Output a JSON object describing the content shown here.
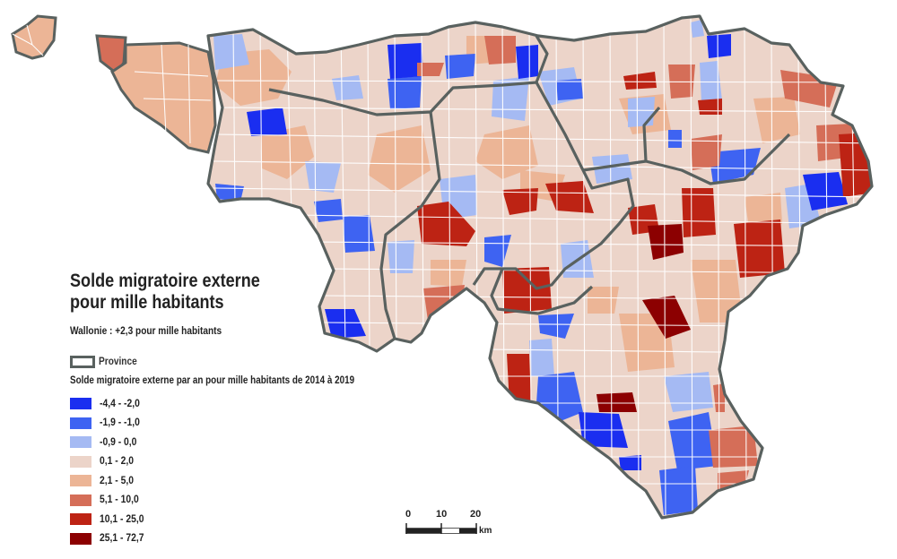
{
  "title_line1": "Solde migratoire externe",
  "title_line2": "pour mille habitants",
  "wallonie_note": "Wallonie : +2,3 pour mille habitants",
  "province_legend_label": "Province",
  "legend_title": "Solde migratoire externe par an pour mille habitants de 2014 à 2019",
  "legend": [
    {
      "label": "-4,4 - -2,0",
      "color": "#1a2ef0"
    },
    {
      "label": "-1,9 - -1,0",
      "color": "#3e63f2"
    },
    {
      "label": "-0,9 - 0,0",
      "color": "#a5baf3"
    },
    {
      "label": "0,1 - 2,0",
      "color": "#ecd4c9"
    },
    {
      "label": "2,1 - 5,0",
      "color": "#ecb596"
    },
    {
      "label": "5,1 - 10,0",
      "color": "#d56e58"
    },
    {
      "label": "10,1 - 25,0",
      "color": "#bd2314"
    },
    {
      "label": "25,1 - 72,7",
      "color": "#8c0001"
    }
  ],
  "province_border_color": "#59615f",
  "scalebar": {
    "ticks": [
      "0",
      "10",
      "20"
    ],
    "unit": "km"
  }
}
